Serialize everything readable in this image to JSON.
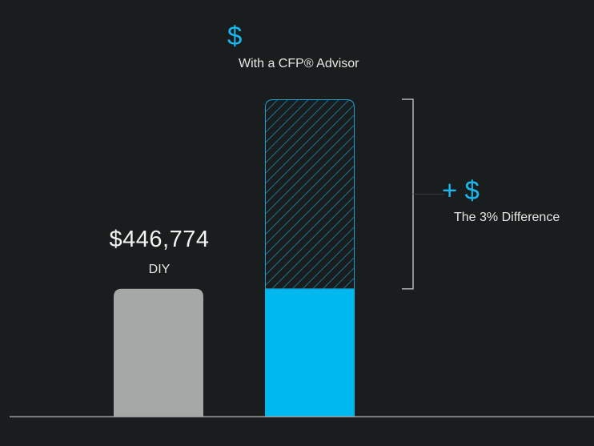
{
  "chart_data": {
    "type": "bar",
    "categories": [
      "DIY",
      "With a CFP® Advisor"
    ],
    "series": [
      {
        "values": [
          446774,
          446774
        ]
      },
      {
        "values": [
          0,
          664000
        ]
      }
    ],
    "labels": {
      "diy_value": "$446,774",
      "diy_caption": "DIY",
      "cfp_value": "$",
      "cfp_caption": "With a CFP®  Advisor",
      "diff_value": "+ $",
      "diff_caption": "The 3% Difference"
    },
    "ylim": [
      0,
      1110774
    ],
    "grid": false,
    "legend": "none",
    "colors": {
      "background": "#1a1d1d",
      "diy_bar": "#a6a8a8",
      "cfp_base": "#00b8f0",
      "cfp_hatch": "#1a9fd4",
      "accent_text": "#19b8ee",
      "baseline": "#9a9c9c",
      "bracket": "#b5b7b7"
    }
  }
}
